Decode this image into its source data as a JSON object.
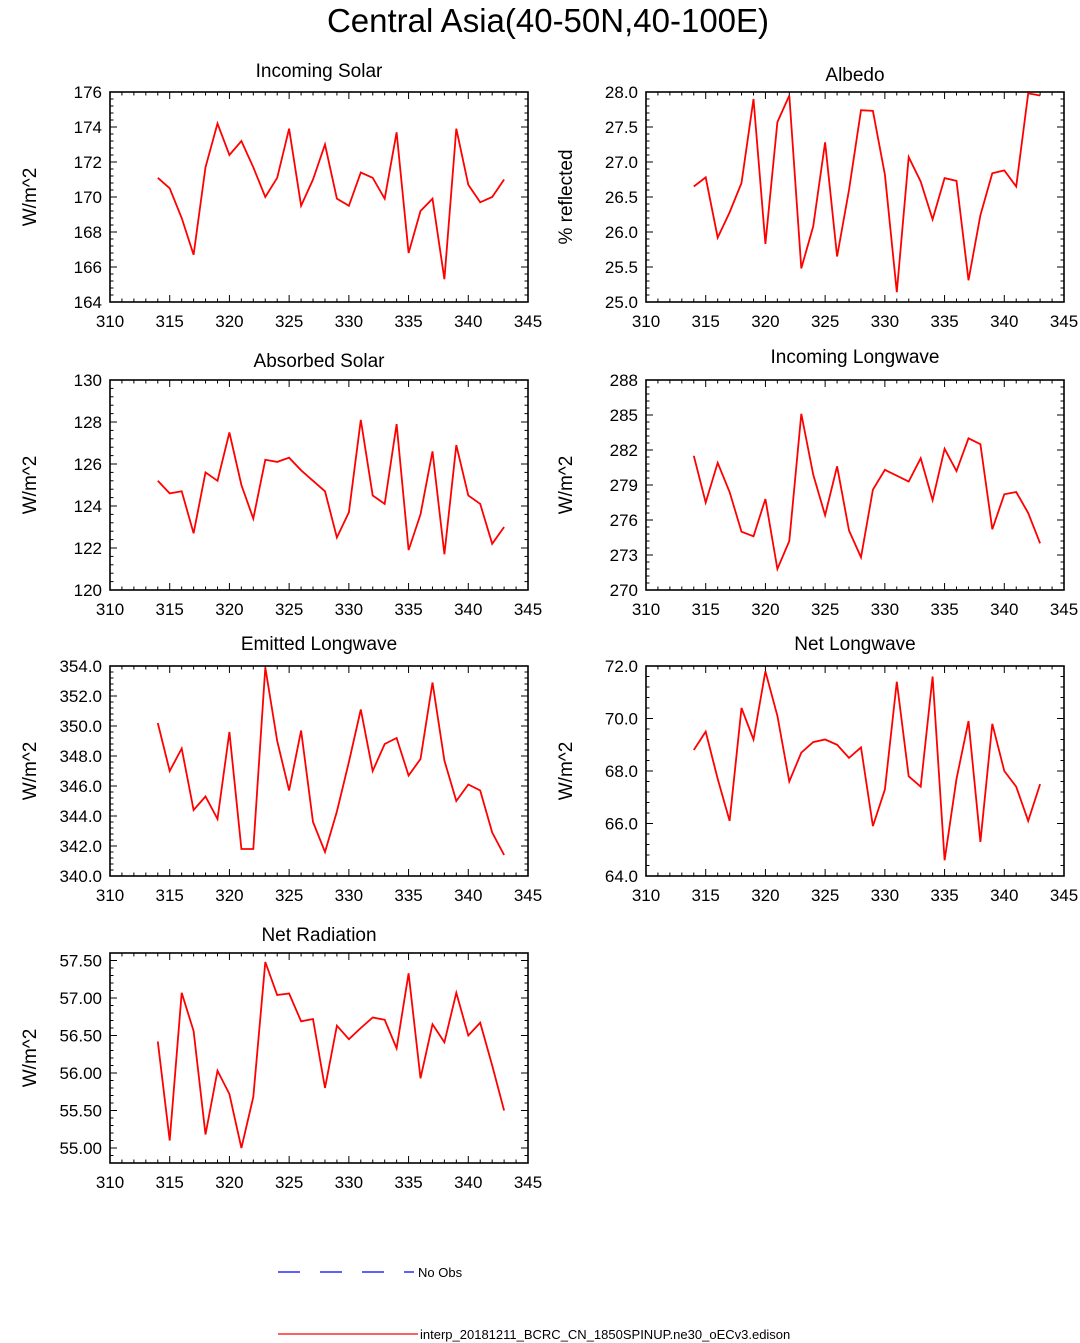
{
  "page_title": "Central Asia(40-50N,40-100E)",
  "legend": {
    "obs_label": "No Obs",
    "obs_color": "#0000ff",
    "model_label": "interp_20181211_BCRC_CN_1850SPINUP.ne30_oECv3.edison",
    "model_color": "#ff0000"
  },
  "chart_data": [
    {
      "type": "line",
      "title": "Incoming Solar",
      "ylabel": "W/m^2",
      "xlim": [
        310,
        345
      ],
      "ylim": [
        164,
        176
      ],
      "xticks": [
        310,
        315,
        320,
        325,
        330,
        335,
        340,
        345
      ],
      "yticks": [
        164,
        166,
        168,
        170,
        172,
        174,
        176
      ],
      "ydecimals": 0,
      "x": [
        314,
        315,
        316,
        317,
        318,
        319,
        320,
        321,
        322,
        323,
        324,
        325,
        326,
        327,
        328,
        329,
        330,
        331,
        332,
        333,
        334,
        335,
        336,
        337,
        338,
        339,
        340,
        341,
        342,
        343
      ],
      "series": [
        {
          "color": "#ff0000",
          "values": [
            171.1,
            170.5,
            168.8,
            166.7,
            171.7,
            174.2,
            172.4,
            173.2,
            171.7,
            170.0,
            171.1,
            173.9,
            169.5,
            171.0,
            173.0,
            169.9,
            169.5,
            171.4,
            171.1,
            169.9,
            173.7,
            166.8,
            169.2,
            169.9,
            165.3,
            173.9,
            170.7,
            169.7,
            170.0,
            171.0
          ]
        }
      ]
    },
    {
      "type": "line",
      "title": "Albedo",
      "ylabel": "% reflected",
      "xlim": [
        310,
        345
      ],
      "ylim": [
        25.0,
        28.0
      ],
      "xticks": [
        310,
        315,
        320,
        325,
        330,
        335,
        340,
        345
      ],
      "yticks": [
        25.0,
        25.5,
        26.0,
        26.5,
        27.0,
        27.5,
        28.0
      ],
      "ydecimals": 1,
      "x": [
        314,
        315,
        316,
        317,
        318,
        319,
        320,
        321,
        322,
        323,
        324,
        325,
        326,
        327,
        328,
        329,
        330,
        331,
        332,
        333,
        334,
        335,
        336,
        337,
        338,
        339,
        340,
        341,
        342,
        343
      ],
      "series": [
        {
          "color": "#ff0000",
          "values": [
            26.65,
            26.78,
            25.92,
            26.28,
            26.7,
            27.9,
            25.83,
            27.57,
            27.95,
            25.48,
            26.08,
            27.28,
            25.65,
            26.6,
            27.74,
            27.73,
            26.82,
            25.14,
            27.07,
            26.72,
            26.18,
            26.77,
            26.73,
            25.31,
            26.24,
            26.84,
            26.88,
            26.65,
            27.98,
            27.95
          ]
        }
      ]
    },
    {
      "type": "line",
      "title": "Absorbed Solar",
      "ylabel": "W/m^2",
      "xlim": [
        310,
        345
      ],
      "ylim": [
        120,
        130
      ],
      "xticks": [
        310,
        315,
        320,
        325,
        330,
        335,
        340,
        345
      ],
      "yticks": [
        120,
        122,
        124,
        126,
        128,
        130
      ],
      "ydecimals": 0,
      "x": [
        314,
        315,
        316,
        317,
        318,
        319,
        320,
        321,
        322,
        323,
        324,
        325,
        326,
        327,
        328,
        329,
        330,
        331,
        332,
        333,
        334,
        335,
        336,
        337,
        338,
        339,
        340,
        341,
        342,
        343
      ],
      "series": [
        {
          "color": "#ff0000",
          "values": [
            125.2,
            124.6,
            124.7,
            122.7,
            125.6,
            125.2,
            127.5,
            125.0,
            123.4,
            126.2,
            126.1,
            126.3,
            125.7,
            125.2,
            124.7,
            122.5,
            123.7,
            128.1,
            124.5,
            124.1,
            127.9,
            121.9,
            123.6,
            126.6,
            121.7,
            126.9,
            124.5,
            124.1,
            122.2,
            123.0
          ]
        }
      ]
    },
    {
      "type": "line",
      "title": "Incoming Longwave",
      "ylabel": "W/m^2",
      "xlim": [
        310,
        345
      ],
      "ylim": [
        270,
        288
      ],
      "xticks": [
        310,
        315,
        320,
        325,
        330,
        335,
        340,
        345
      ],
      "yticks": [
        270,
        273,
        276,
        279,
        282,
        285,
        288
      ],
      "ydecimals": 0,
      "x": [
        314,
        315,
        316,
        317,
        318,
        319,
        320,
        321,
        322,
        323,
        324,
        325,
        326,
        327,
        328,
        329,
        330,
        331,
        332,
        333,
        334,
        335,
        336,
        337,
        338,
        339,
        340,
        341,
        342,
        343
      ],
      "series": [
        {
          "color": "#ff0000",
          "values": [
            281.5,
            277.5,
            280.9,
            278.4,
            275.0,
            274.6,
            277.8,
            271.8,
            274.2,
            285.1,
            279.9,
            276.4,
            280.6,
            275.1,
            272.8,
            278.6,
            280.3,
            279.8,
            279.3,
            281.3,
            277.7,
            282.1,
            280.2,
            283.0,
            282.5,
            275.2,
            278.2,
            278.4,
            276.6,
            274.0
          ]
        }
      ]
    },
    {
      "type": "line",
      "title": "Emitted Longwave",
      "ylabel": "W/m^2",
      "xlim": [
        310,
        345
      ],
      "ylim": [
        340.0,
        354.0
      ],
      "xticks": [
        310,
        315,
        320,
        325,
        330,
        335,
        340,
        345
      ],
      "yticks": [
        340.0,
        342.0,
        344.0,
        346.0,
        348.0,
        350.0,
        352.0,
        354.0
      ],
      "ydecimals": 1,
      "x": [
        314,
        315,
        316,
        317,
        318,
        319,
        320,
        321,
        322,
        323,
        324,
        325,
        326,
        327,
        328,
        329,
        330,
        331,
        332,
        333,
        334,
        335,
        336,
        337,
        338,
        339,
        340,
        341,
        342,
        343
      ],
      "series": [
        {
          "color": "#ff0000",
          "values": [
            350.2,
            347.0,
            348.5,
            344.4,
            345.3,
            343.8,
            349.6,
            341.8,
            341.8,
            353.9,
            349.0,
            345.7,
            349.7,
            343.6,
            341.6,
            344.3,
            347.6,
            351.1,
            347.0,
            348.8,
            349.2,
            346.7,
            347.8,
            352.9,
            347.7,
            345.0,
            346.1,
            345.7,
            342.9,
            341.4
          ]
        }
      ]
    },
    {
      "type": "line",
      "title": "Net Longwave",
      "ylabel": "W/m^2",
      "xlim": [
        310,
        345
      ],
      "ylim": [
        64.0,
        72.0
      ],
      "xticks": [
        310,
        315,
        320,
        325,
        330,
        335,
        340,
        345
      ],
      "yticks": [
        64.0,
        66.0,
        68.0,
        70.0,
        72.0
      ],
      "ydecimals": 1,
      "x": [
        314,
        315,
        316,
        317,
        318,
        319,
        320,
        321,
        322,
        323,
        324,
        325,
        326,
        327,
        328,
        329,
        330,
        331,
        332,
        333,
        334,
        335,
        336,
        337,
        338,
        339,
        340,
        341,
        342,
        343
      ],
      "series": [
        {
          "color": "#ff0000",
          "values": [
            68.8,
            69.5,
            67.7,
            66.1,
            70.4,
            69.2,
            71.8,
            70.1,
            67.6,
            68.7,
            69.1,
            69.2,
            69.0,
            68.5,
            68.9,
            65.9,
            67.3,
            71.4,
            67.8,
            67.4,
            71.6,
            64.6,
            67.7,
            69.9,
            65.3,
            69.8,
            68.0,
            67.4,
            66.1,
            67.5
          ]
        }
      ]
    },
    {
      "type": "line",
      "title": "Net Radiation",
      "ylabel": "W/m^2",
      "xlim": [
        310,
        345
      ],
      "ylim": [
        54.8,
        57.6
      ],
      "xticks": [
        310,
        315,
        320,
        325,
        330,
        335,
        340,
        345
      ],
      "yticks": [
        55.0,
        55.5,
        56.0,
        56.5,
        57.0,
        57.5
      ],
      "ydecimals": 2,
      "x": [
        314,
        315,
        316,
        317,
        318,
        319,
        320,
        321,
        322,
        323,
        324,
        325,
        326,
        327,
        328,
        329,
        330,
        331,
        332,
        333,
        334,
        335,
        336,
        337,
        338,
        339,
        340,
        341,
        342,
        343
      ],
      "series": [
        {
          "color": "#ff0000",
          "values": [
            56.42,
            55.1,
            57.07,
            56.56,
            55.18,
            56.03,
            55.72,
            55.0,
            55.68,
            57.48,
            57.04,
            57.06,
            56.69,
            56.72,
            55.8,
            56.63,
            56.45,
            56.6,
            56.74,
            56.71,
            56.33,
            57.33,
            55.93,
            56.65,
            56.41,
            57.07,
            56.5,
            56.67,
            56.1,
            55.5
          ]
        }
      ]
    }
  ]
}
